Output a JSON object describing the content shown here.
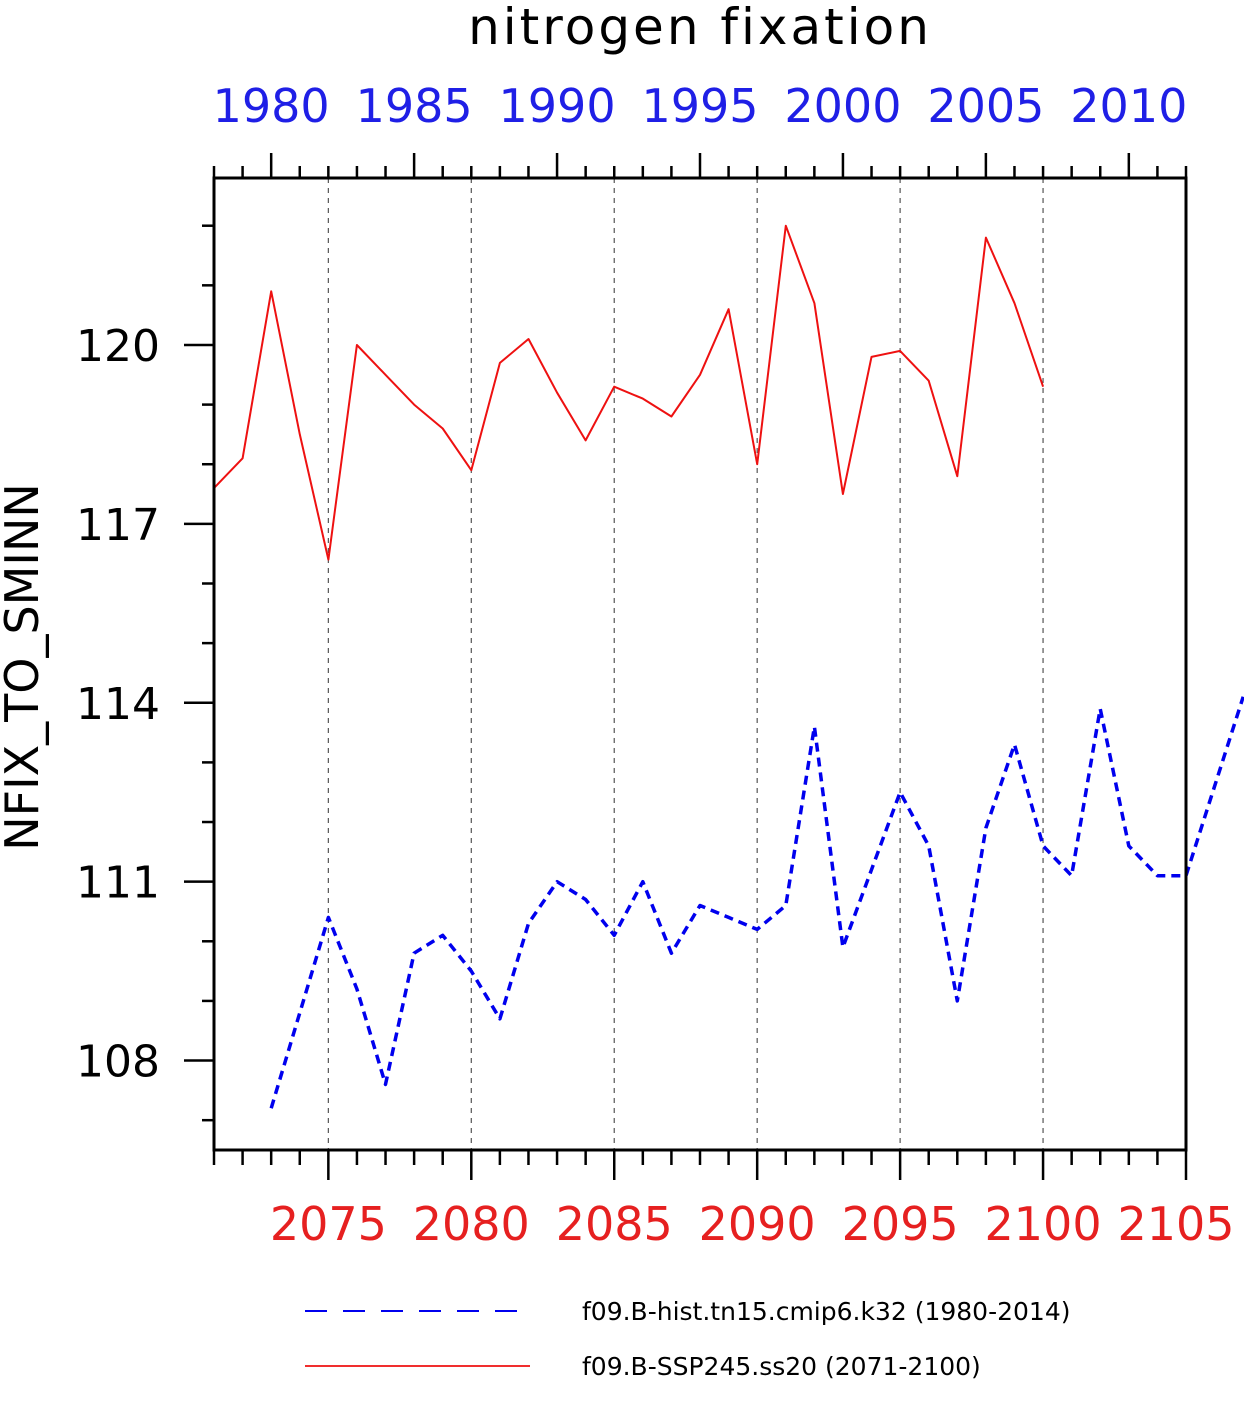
{
  "chart_data": {
    "type": "line",
    "title": "nitrogen fixation",
    "ylabel": "NFIX_TO_SMINN",
    "ylim": [
      106.5,
      122.8
    ],
    "yticks": [
      108,
      111,
      114,
      117,
      120
    ],
    "ytick_labels": [
      "108",
      "111",
      "114",
      "117",
      "120"
    ],
    "yminor": [
      107,
      109,
      110,
      112,
      113,
      115,
      116,
      118,
      119,
      121,
      122
    ],
    "grid": "vertical dashed lines at bottom-axis major ticks",
    "legend_position": "bottom",
    "top_axis": {
      "color": "#1f1fe6",
      "range": [
        1978,
        2012
      ],
      "ticks": [
        1980,
        1985,
        1990,
        1995,
        2000,
        2005,
        2010
      ],
      "tick_labels": [
        "1980",
        "1985",
        "1990",
        "1995",
        "2000",
        "2005",
        "2010"
      ]
    },
    "bottom_axis": {
      "color": "#e62020",
      "range": [
        2071,
        2105
      ],
      "ticks": [
        2075,
        2080,
        2085,
        2090,
        2095,
        2100,
        2105
      ],
      "tick_labels": [
        "2075",
        "2080",
        "2085",
        "2090",
        "2095",
        "2100",
        "2105"
      ]
    },
    "series": [
      {
        "name": "f09.B-hist.tn15.cmip6.k32 (1980-2014)",
        "axis": "top",
        "color": "#0000ee",
        "style": "dashed",
        "x": [
          1980,
          1981,
          1982,
          1983,
          1984,
          1985,
          1986,
          1987,
          1988,
          1989,
          1990,
          1991,
          1992,
          1993,
          1994,
          1995,
          1996,
          1997,
          1998,
          1999,
          2000,
          2001,
          2002,
          2003,
          2004,
          2005,
          2006,
          2007,
          2008,
          2009,
          2010,
          2011,
          2012,
          2013,
          2014
        ],
        "y": [
          107.2,
          108.8,
          110.4,
          109.2,
          107.6,
          109.8,
          110.1,
          109.5,
          108.7,
          110.3,
          111.0,
          110.7,
          110.1,
          111.0,
          109.8,
          110.6,
          110.4,
          110.2,
          110.6,
          113.6,
          109.9,
          111.2,
          112.5,
          111.6,
          109.0,
          111.9,
          113.3,
          111.6,
          111.1,
          113.9,
          111.6,
          111.1,
          111.1,
          112.6,
          114.1
        ]
      },
      {
        "name": "f09.B-SSP245.ss20 (2071-2100)",
        "axis": "bottom",
        "color": "#ee1111",
        "style": "solid",
        "x": [
          2071,
          2072,
          2073,
          2074,
          2075,
          2076,
          2077,
          2078,
          2079,
          2080,
          2081,
          2082,
          2083,
          2084,
          2085,
          2086,
          2087,
          2088,
          2089,
          2090,
          2091,
          2092,
          2093,
          2094,
          2095,
          2096,
          2097,
          2098,
          2099,
          2100
        ],
        "y": [
          117.6,
          118.1,
          120.9,
          118.5,
          116.4,
          120.0,
          119.5,
          119.0,
          118.6,
          117.9,
          119.7,
          120.1,
          119.2,
          118.4,
          119.3,
          119.1,
          118.8,
          119.5,
          120.6,
          118.0,
          122.0,
          120.7,
          117.5,
          119.8,
          119.9,
          119.4,
          117.8,
          121.8,
          120.7,
          119.3
        ]
      }
    ]
  }
}
